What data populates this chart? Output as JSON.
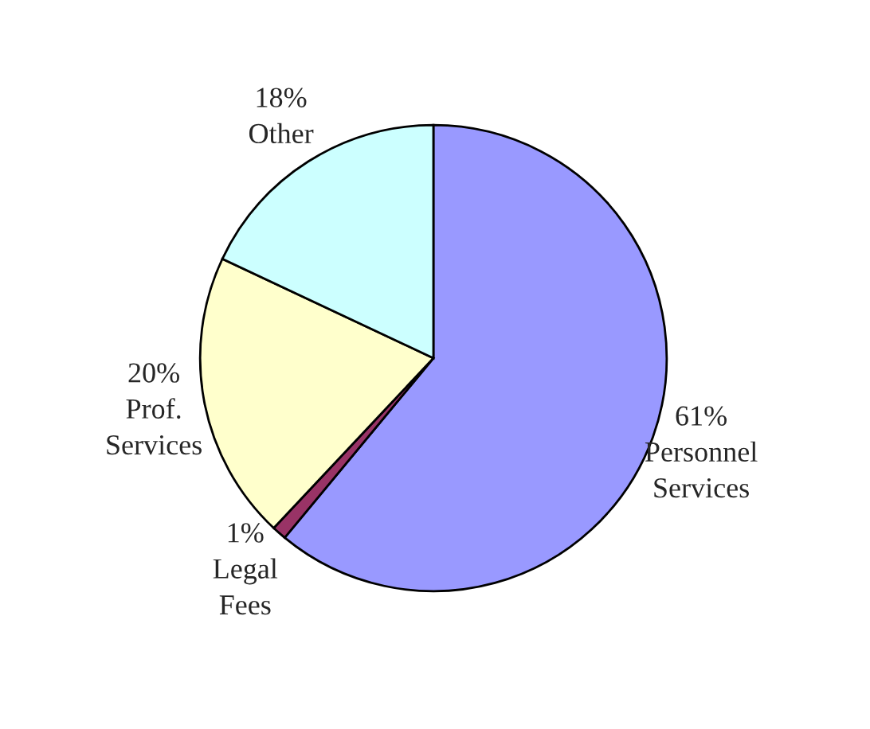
{
  "chart_data": {
    "type": "pie",
    "categories": [
      "Personnel Services",
      "Legal Fees",
      "Prof. Services",
      "Other"
    ],
    "values": [
      61,
      1,
      20,
      18
    ],
    "value_labels": [
      "61%",
      "1%",
      "20%",
      "18%"
    ],
    "colors": [
      "#9999ff",
      "#993366",
      "#ffffcc",
      "#ccffff"
    ]
  }
}
